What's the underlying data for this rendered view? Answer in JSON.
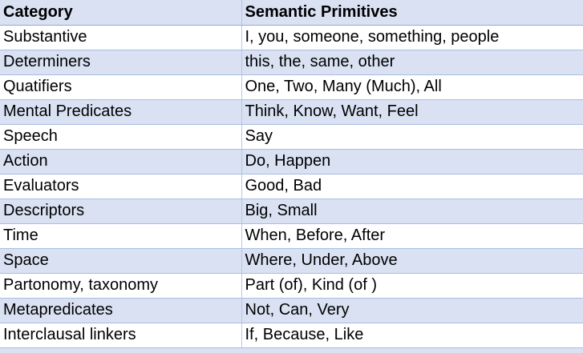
{
  "table": {
    "headers": [
      "Category",
      "Semantic Primitives"
    ],
    "rows": [
      [
        "Substantive",
        "I, you, someone, something, people"
      ],
      [
        "Determiners",
        "this, the, same, other"
      ],
      [
        "Quatifiers",
        "One, Two, Many (Much), All"
      ],
      [
        "Mental Predicates",
        "Think, Know, Want, Feel"
      ],
      [
        "Speech",
        "Say"
      ],
      [
        "Action",
        "Do, Happen"
      ],
      [
        "Evaluators",
        "Good, Bad"
      ],
      [
        "Descriptors",
        "Big, Small"
      ],
      [
        "Time",
        "When, Before, After"
      ],
      [
        "Space",
        "Where, Under, Above"
      ],
      [
        "Partonomy, taxonomy",
        "Part (of), Kind (of )"
      ],
      [
        "Metapredicates",
        "Not, Can, Very"
      ],
      [
        "Interclausal linkers",
        "If, Because, Like"
      ]
    ],
    "colors": {
      "header_bg": "#d9e1f2",
      "band_bg": "#d9e1f2",
      "plain_bg": "#ffffff",
      "rule": "#a9bde2"
    }
  }
}
